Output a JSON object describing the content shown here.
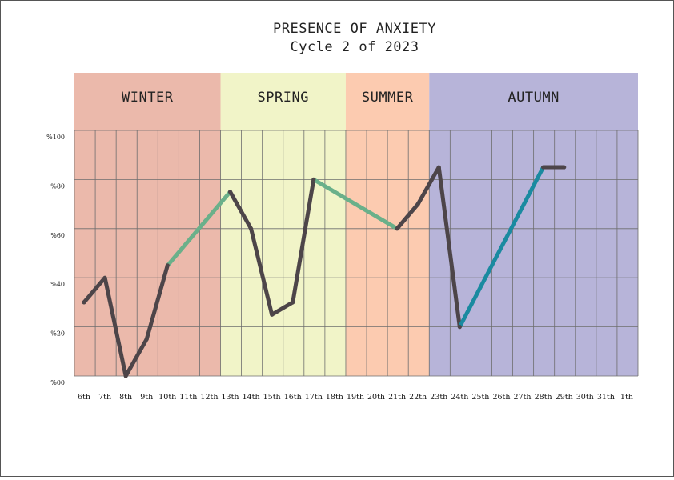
{
  "chart_data": {
    "type": "line",
    "title": "PRESENCE OF ANXIETY",
    "subtitle": "Cycle 2 of 2023",
    "xlabel": "",
    "ylabel": "",
    "ylim": [
      0,
      100
    ],
    "yticks": [
      "%00",
      "%20",
      "%40",
      "%60",
      "%80",
      "%100"
    ],
    "ytick_values": [
      0,
      20,
      40,
      60,
      80,
      100
    ],
    "categories": [
      "6th",
      "7th",
      "8th",
      "9th",
      "10th",
      "11th",
      "12th",
      "13th",
      "14th",
      "15th",
      "16th",
      "17th",
      "18th",
      "19th",
      "20th",
      "21th",
      "22th",
      "23th",
      "24th",
      "25th",
      "26th",
      "27th",
      "28th",
      "29th",
      "30th",
      "31th",
      "1th"
    ],
    "seasons": [
      {
        "name": "WINTER",
        "from": 0,
        "to": 6,
        "color": "#ebb9ab"
      },
      {
        "name": "SPRING",
        "from": 7,
        "to": 12,
        "color": "#f1f4c8"
      },
      {
        "name": "SUMMER",
        "from": 13,
        "to": 16,
        "color": "#fccbb0"
      },
      {
        "name": "AUTUMN",
        "from": 17,
        "to": 26,
        "color": "#b7b4d9"
      }
    ],
    "series": [
      {
        "values": [
          30,
          40,
          0,
          15,
          45,
          null,
          null,
          75,
          60,
          25,
          30,
          80,
          null,
          null,
          null,
          60,
          70,
          85,
          20,
          null,
          null,
          null,
          85,
          85,
          null,
          null,
          null
        ]
      }
    ],
    "colors": {
      "measured": "#4d4549",
      "interpolated_warm": "#6ab08a",
      "interpolated_cool": "#1a8aa0"
    },
    "grid": true
  }
}
